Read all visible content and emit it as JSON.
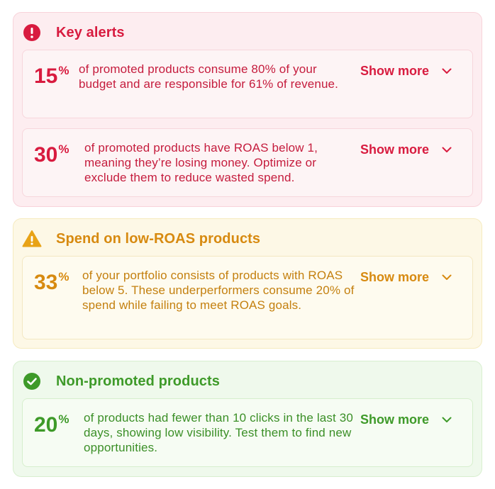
{
  "colors": {
    "red": "#d81b3f",
    "yellow": "#d78a10",
    "green": "#3e9a29"
  },
  "key_alerts": {
    "icon": "exclamation-circle-icon",
    "title": "Key alerts",
    "cards": [
      {
        "value": "15",
        "unit": "%",
        "description": "of promoted products consume 80% of your budget and are responsible for 61% of revenue.",
        "show_more": "Show more"
      },
      {
        "value": "30",
        "unit": "%",
        "description": "of promoted products have ROAS below 1, meaning they’re losing money. Optimize or exclude them to reduce wasted spend.",
        "show_more": "Show more"
      }
    ]
  },
  "low_roas": {
    "icon": "warning-triangle-icon",
    "title": "Spend on low-ROAS products",
    "cards": [
      {
        "value": "33",
        "unit": "%",
        "description": "of your portfolio consists of products with ROAS below 5. These underperformers consume 20% of spend while failing to meet ROAS goals.",
        "show_more": "Show more"
      }
    ]
  },
  "non_promoted": {
    "icon": "check-circle-icon",
    "title": "Non-promoted products",
    "cards": [
      {
        "value": "20",
        "unit": "%",
        "description": "of products had fewer than 10 clicks in the last 30 days, showing low visibility. Test them to find new opportunities.",
        "show_more": "Show more"
      }
    ]
  }
}
